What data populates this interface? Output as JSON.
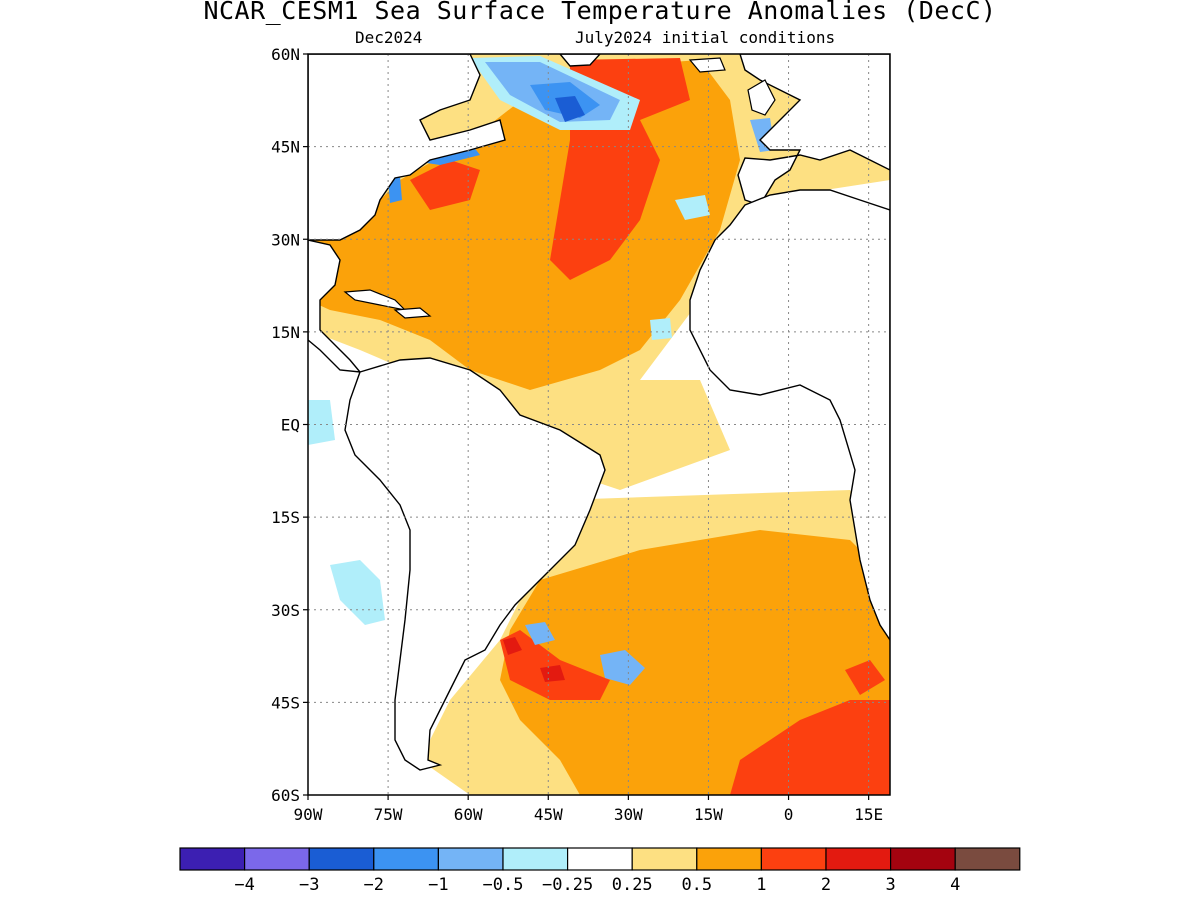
{
  "title": "NCAR_CESM1 Sea Surface Temperature Anomalies (DecC)",
  "subtitle_left": "Dec2024",
  "subtitle_right": "July2024 initial conditions",
  "lat_ticks": [
    "60N",
    "45N",
    "30N",
    "15N",
    "EQ",
    "15S",
    "30S",
    "45S",
    "60S"
  ],
  "lon_ticks": [
    "90W",
    "75W",
    "60W",
    "45W",
    "30W",
    "15W",
    "0",
    "15E"
  ],
  "lat_values": [
    60,
    45,
    30,
    15,
    0,
    -15,
    -30,
    -45,
    -60
  ],
  "lon_values": [
    -90,
    -75,
    -60,
    -45,
    -30,
    -15,
    0,
    15
  ],
  "map_extent": {
    "lon": [
      -90,
      19
    ],
    "lat": [
      -60,
      60
    ]
  },
  "colorbar": {
    "colors": [
      "#3c1fb2",
      "#7b68ea",
      "#1a5dd4",
      "#3c93f2",
      "#74b4f6",
      "#b0eefa",
      "#ffffff",
      "#fde082",
      "#fba20a",
      "#fc4010",
      "#e31a10",
      "#a4030f",
      "#7a4b3f"
    ],
    "labels": [
      "−4",
      "−3",
      "−2",
      "−1",
      "−0.5",
      "−0.25",
      "0.25",
      "0.5",
      "1",
      "2",
      "3",
      "4"
    ]
  },
  "map_data": {
    "type": "heatmap",
    "variable": "Sea Surface Temperature Anomalies",
    "unit": "DecC",
    "regions": [
      {
        "area": "Subtropical North Atlantic (center)",
        "anomaly_range": "1 to 2"
      },
      {
        "area": "North Atlantic mid-latitudes",
        "anomaly_range": "0.5 to 1"
      },
      {
        "area": "Labrador Sea / south of Greenland",
        "anomaly_range": "-2 to -0.5"
      },
      {
        "area": "Off US East Coast (Gulf Stream)",
        "anomaly_range": "-1 to -0.5"
      },
      {
        "area": "Equatorial Atlantic",
        "anomaly_range": "-0.25 to 0.5"
      },
      {
        "area": "South Atlantic subtropics",
        "anomaly_range": "0.5 to 1"
      },
      {
        "area": "Southwest Atlantic off Argentina",
        "anomaly_range": "1 to 3"
      },
      {
        "area": "Southern Ocean south of Africa",
        "anomaly_range": "1 to 2"
      },
      {
        "area": "Eastern Pacific off Peru",
        "anomaly_range": "-0.5 to -0.25"
      }
    ]
  }
}
